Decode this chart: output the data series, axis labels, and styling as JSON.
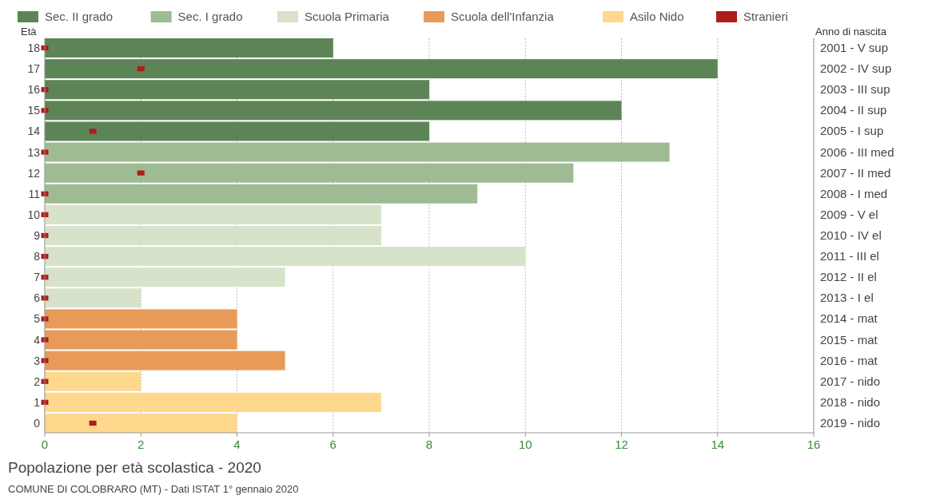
{
  "chart_data": {
    "type": "bar",
    "orientation": "horizontal",
    "title": "Popolazione per età scolastica - 2020",
    "ylabel": "Età",
    "y2label": "Anno di nascita",
    "annotations": [
      "COMUNE DI COLOBRARO (MT) - Dati ISTAT 1° gennaio 2020"
    ],
    "categories": [
      "18",
      "17",
      "16",
      "15",
      "14",
      "13",
      "12",
      "11",
      "10",
      "9",
      "8",
      "7",
      "6",
      "5",
      "4",
      "3",
      "2",
      "1",
      "0"
    ],
    "y2_categories": [
      "2001 - V sup",
      "2002 - IV sup",
      "2003 - III sup",
      "2004 - II sup",
      "2005 - I sup",
      "2006 - III med",
      "2007 - II med",
      "2008 - I med",
      "2009 - V el",
      "2010 - IV el",
      "2011 - III el",
      "2012 - II el",
      "2013 - I el",
      "2014 - mat",
      "2015 - mat",
      "2016 - mat",
      "2017 - nido",
      "2018 - nido",
      "2019 - nido"
    ],
    "xlim": [
      0,
      16
    ],
    "xticks": [
      0,
      2,
      4,
      6,
      8,
      10,
      12,
      14,
      16
    ],
    "grid": "x",
    "legend": "top",
    "series": [
      {
        "name": "Sec. II grado",
        "color": "#5d8456",
        "values": [
          6,
          14,
          8,
          12,
          8,
          null,
          null,
          null,
          null,
          null,
          null,
          null,
          null,
          null,
          null,
          null,
          null,
          null,
          null
        ]
      },
      {
        "name": "Sec. I grado",
        "color": "#9fbb93",
        "values": [
          null,
          null,
          null,
          null,
          null,
          13,
          11,
          9,
          null,
          null,
          null,
          null,
          null,
          null,
          null,
          null,
          null,
          null,
          null
        ]
      },
      {
        "name": "Scuola Primaria",
        "color": "#d6e3ca",
        "values": [
          null,
          null,
          null,
          null,
          null,
          null,
          null,
          null,
          7,
          7,
          10,
          5,
          2,
          null,
          null,
          null,
          null,
          null,
          null
        ]
      },
      {
        "name": "Scuola dell'Infanzia",
        "color": "#e89b58",
        "values": [
          null,
          null,
          null,
          null,
          null,
          null,
          null,
          null,
          null,
          null,
          null,
          null,
          null,
          4,
          4,
          5,
          null,
          null,
          null
        ]
      },
      {
        "name": "Asilo Nido",
        "color": "#fdd88d",
        "values": [
          null,
          null,
          null,
          null,
          null,
          null,
          null,
          null,
          null,
          null,
          null,
          null,
          null,
          null,
          null,
          null,
          2,
          7,
          4
        ]
      },
      {
        "name": "Stranieri",
        "type": "scatter",
        "marker": "square",
        "color": "#b01c1c",
        "x": [
          "18",
          "17",
          "16",
          "15",
          "14",
          "13",
          "12",
          "11",
          "10",
          "9",
          "8",
          "7",
          "6",
          "5",
          "4",
          "3",
          "2",
          "1",
          "0"
        ],
        "values": [
          0,
          2,
          0,
          0,
          1,
          0,
          2,
          0,
          0,
          0,
          0,
          0,
          0,
          0,
          0,
          0,
          0,
          0,
          1
        ]
      }
    ]
  }
}
